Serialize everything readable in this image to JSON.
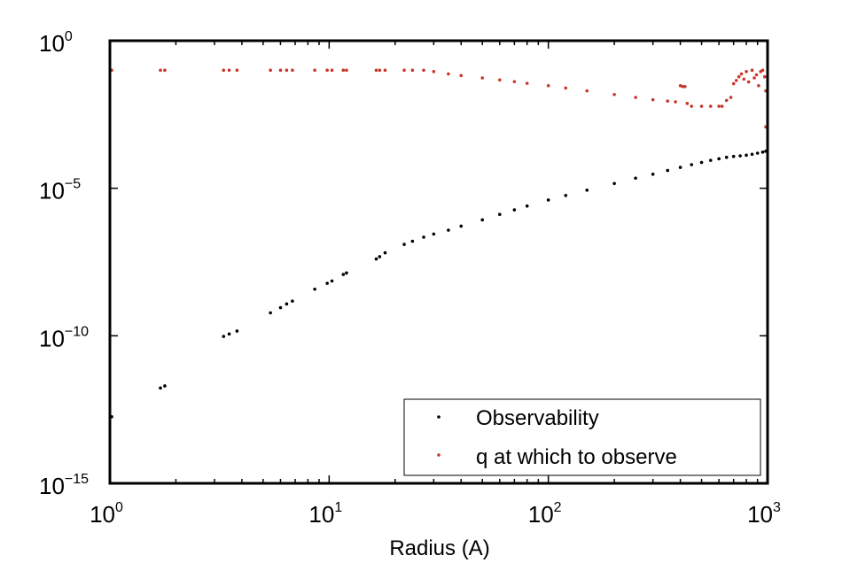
{
  "chart_data": {
    "type": "scatter",
    "title": "",
    "xlabel": "Radius (A)",
    "ylabel": "",
    "x_scale": "log",
    "y_scale": "log",
    "xlim": [
      1,
      1000
    ],
    "ylim": [
      1e-15,
      1
    ],
    "x_ticks": [
      {
        "base": "10",
        "exp": "0",
        "value": 1
      },
      {
        "base": "10",
        "exp": "1",
        "value": 10
      },
      {
        "base": "10",
        "exp": "2",
        "value": 100
      },
      {
        "base": "10",
        "exp": "3",
        "value": 1000
      }
    ],
    "y_ticks": [
      {
        "base": "10",
        "exp": "0",
        "value": 1
      },
      {
        "base": "10",
        "exp": "−5",
        "value": 1e-05
      },
      {
        "base": "10",
        "exp": "−10",
        "value": 1e-10
      },
      {
        "base": "10",
        "exp": "−15",
        "value": 1e-15
      }
    ],
    "legend_position": "bottom-right",
    "grid": false,
    "series": [
      {
        "name": "Observability",
        "color": "#000000",
        "marker": "dot",
        "points": [
          [
            1.0,
            1.8e-13
          ],
          [
            1.7,
            1.7e-12
          ],
          [
            1.78,
            2e-12
          ],
          [
            3.3,
            9.5e-11
          ],
          [
            3.5,
            1.15e-10
          ],
          [
            3.8,
            1.45e-10
          ],
          [
            5.4,
            6e-10
          ],
          [
            6.0,
            9e-10
          ],
          [
            6.4,
            1.2e-09
          ],
          [
            6.8,
            1.5e-09
          ],
          [
            8.6,
            3.8e-09
          ],
          [
            9.8,
            6e-09
          ],
          [
            10.3,
            7.2e-09
          ],
          [
            11.6,
            1.2e-08
          ],
          [
            12.0,
            1.35e-08
          ],
          [
            16.4,
            4e-08
          ],
          [
            17.0,
            4.8e-08
          ],
          [
            18.0,
            6.5e-08
          ],
          [
            22.0,
            1.25e-07
          ],
          [
            24.0,
            1.6e-07
          ],
          [
            27.0,
            2.2e-07
          ],
          [
            30.0,
            2.8e-07
          ],
          [
            35.0,
            3.8e-07
          ],
          [
            40.0,
            5.2e-07
          ],
          [
            50.0,
            8.5e-07
          ],
          [
            60.0,
            1.3e-06
          ],
          [
            70.0,
            1.85e-06
          ],
          [
            80.0,
            2.5e-06
          ],
          [
            100.0,
            4e-06
          ],
          [
            120.0,
            5.7e-06
          ],
          [
            150.0,
            8.6e-06
          ],
          [
            200.0,
            1.45e-05
          ],
          [
            250.0,
            2.2e-05
          ],
          [
            300.0,
            3e-05
          ],
          [
            350.0,
            4e-05
          ],
          [
            400.0,
            5.1e-05
          ],
          [
            450.0,
            6.3e-05
          ],
          [
            500.0,
            7.5e-05
          ],
          [
            550.0,
            8.8e-05
          ],
          [
            600.0,
            0.0001
          ],
          [
            650.0,
            0.000112
          ],
          [
            700.0,
            0.00012
          ],
          [
            750.0,
            0.000126
          ],
          [
            800.0,
            0.000132
          ],
          [
            850.0,
            0.000142
          ],
          [
            900.0,
            0.000155
          ],
          [
            950.0,
            0.000168
          ],
          [
            1000.0,
            0.00018
          ]
        ]
      },
      {
        "name": "q at which to observe",
        "color": "#c8382a",
        "marker": "dot",
        "points": [
          [
            1.0,
            0.1
          ],
          [
            1.7,
            0.1
          ],
          [
            1.78,
            0.1
          ],
          [
            3.3,
            0.1
          ],
          [
            3.5,
            0.1
          ],
          [
            3.8,
            0.1
          ],
          [
            5.4,
            0.1
          ],
          [
            6.0,
            0.1
          ],
          [
            6.4,
            0.1
          ],
          [
            6.8,
            0.1
          ],
          [
            8.6,
            0.1
          ],
          [
            9.8,
            0.1
          ],
          [
            10.3,
            0.1
          ],
          [
            11.6,
            0.1
          ],
          [
            12.0,
            0.1
          ],
          [
            16.4,
            0.1
          ],
          [
            17.0,
            0.1
          ],
          [
            18.0,
            0.1
          ],
          [
            22.0,
            0.1
          ],
          [
            24.0,
            0.1
          ],
          [
            27.0,
            0.1
          ],
          [
            30.0,
            0.09
          ],
          [
            35.0,
            0.075
          ],
          [
            40.0,
            0.066
          ],
          [
            50.0,
            0.055
          ],
          [
            60.0,
            0.047
          ],
          [
            70.0,
            0.041
          ],
          [
            80.0,
            0.036
          ],
          [
            100.0,
            0.03
          ],
          [
            120.0,
            0.025
          ],
          [
            150.0,
            0.02
          ],
          [
            200.0,
            0.015
          ],
          [
            250.0,
            0.012
          ],
          [
            300.0,
            0.01
          ],
          [
            350.0,
            0.009
          ],
          [
            380.0,
            0.0085
          ],
          [
            400.0,
            0.03
          ],
          [
            410.0,
            0.028
          ],
          [
            420.0,
            0.028
          ],
          [
            430.0,
            0.0075
          ],
          [
            450.0,
            0.006
          ],
          [
            500.0,
            0.006
          ],
          [
            550.0,
            0.006
          ],
          [
            600.0,
            0.006
          ],
          [
            620.0,
            0.006
          ],
          [
            650.0,
            0.0095
          ],
          [
            680.0,
            0.012
          ],
          [
            700.0,
            0.035
          ],
          [
            720.0,
            0.045
          ],
          [
            740.0,
            0.06
          ],
          [
            760.0,
            0.075
          ],
          [
            780.0,
            0.05
          ],
          [
            800.0,
            0.09
          ],
          [
            820.0,
            0.04
          ],
          [
            850.0,
            0.1
          ],
          [
            870.0,
            0.055
          ],
          [
            890.0,
            0.07
          ],
          [
            910.0,
            0.03
          ],
          [
            930.0,
            0.09
          ],
          [
            950.0,
            0.1
          ],
          [
            970.0,
            0.06
          ],
          [
            985.0,
            0.02
          ],
          [
            1000.0,
            0.0012
          ]
        ]
      }
    ]
  }
}
